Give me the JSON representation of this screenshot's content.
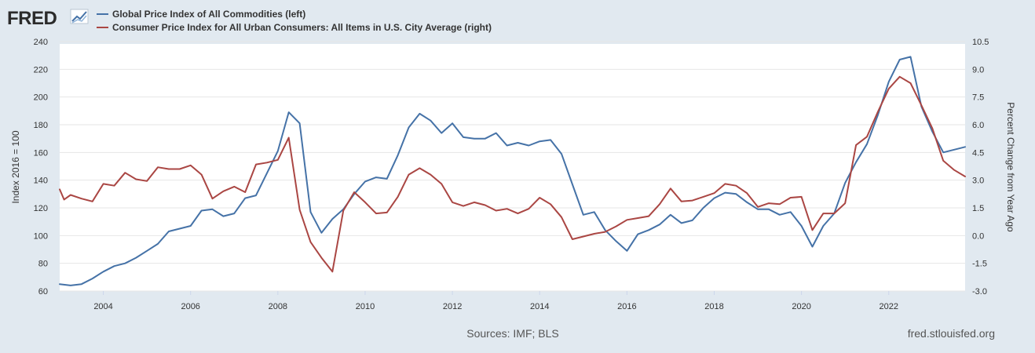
{
  "header": {
    "logo_text": "FRED",
    "logo_icon": "fred-chart-logo-icon"
  },
  "colors": {
    "background": "#e1e9f0",
    "plot_background": "#ffffff",
    "gridline": "#e6e6e6",
    "series_1": "#4572a7",
    "series_2": "#aa4643"
  },
  "footer": {
    "sources": "Sources: IMF; BLS",
    "site": "fred.stlouisfed.org"
  },
  "chart_data": {
    "type": "line",
    "grid": true,
    "legend_position": "top-left",
    "x_ticks": [
      "2004",
      "2006",
      "2008",
      "2010",
      "2012",
      "2014",
      "2016",
      "2018",
      "2020",
      "2022"
    ],
    "x_range": [
      2003.0,
      2023.75
    ],
    "left_axis": {
      "label": "Index 2016 = 100",
      "range": [
        60,
        240
      ],
      "ticks": [
        "60",
        "80",
        "100",
        "120",
        "140",
        "160",
        "180",
        "200",
        "220",
        "240"
      ]
    },
    "right_axis": {
      "label": "Percent Change from Year Ago",
      "range": [
        -3.0,
        10.5
      ],
      "ticks": [
        "-3.0",
        "-1.5",
        "0.0",
        "1.5",
        "3.0",
        "4.5",
        "6.0",
        "7.5",
        "9.0",
        "10.5"
      ]
    },
    "series": [
      {
        "name": "Global Price Index of All Commodities (left)",
        "axis": "left",
        "color": "#4572a7",
        "points": [
          [
            2003.0,
            65
          ],
          [
            2003.25,
            64
          ],
          [
            2003.5,
            65
          ],
          [
            2003.75,
            69
          ],
          [
            2004.0,
            74
          ],
          [
            2004.25,
            78
          ],
          [
            2004.5,
            80
          ],
          [
            2004.75,
            84
          ],
          [
            2005.0,
            89
          ],
          [
            2005.25,
            94
          ],
          [
            2005.5,
            103
          ],
          [
            2005.75,
            105
          ],
          [
            2006.0,
            107
          ],
          [
            2006.25,
            118
          ],
          [
            2006.5,
            119
          ],
          [
            2006.75,
            114
          ],
          [
            2007.0,
            116
          ],
          [
            2007.25,
            127
          ],
          [
            2007.5,
            129
          ],
          [
            2007.75,
            145
          ],
          [
            2008.0,
            161
          ],
          [
            2008.25,
            189
          ],
          [
            2008.5,
            181
          ],
          [
            2008.75,
            117
          ],
          [
            2009.0,
            102
          ],
          [
            2009.25,
            112
          ],
          [
            2009.5,
            119
          ],
          [
            2009.75,
            130
          ],
          [
            2010.0,
            139
          ],
          [
            2010.25,
            142
          ],
          [
            2010.5,
            141
          ],
          [
            2010.75,
            158
          ],
          [
            2011.0,
            178
          ],
          [
            2011.25,
            188
          ],
          [
            2011.5,
            183
          ],
          [
            2011.75,
            174
          ],
          [
            2012.0,
            181
          ],
          [
            2012.25,
            171
          ],
          [
            2012.5,
            170
          ],
          [
            2012.75,
            170
          ],
          [
            2013.0,
            174
          ],
          [
            2013.25,
            165
          ],
          [
            2013.5,
            167
          ],
          [
            2013.75,
            165
          ],
          [
            2014.0,
            168
          ],
          [
            2014.25,
            169
          ],
          [
            2014.5,
            159
          ],
          [
            2014.75,
            137
          ],
          [
            2015.0,
            115
          ],
          [
            2015.25,
            117
          ],
          [
            2015.5,
            104
          ],
          [
            2015.75,
            96
          ],
          [
            2016.0,
            89
          ],
          [
            2016.25,
            101
          ],
          [
            2016.5,
            104
          ],
          [
            2016.75,
            108
          ],
          [
            2017.0,
            115
          ],
          [
            2017.25,
            109
          ],
          [
            2017.5,
            111
          ],
          [
            2017.75,
            120
          ],
          [
            2018.0,
            127
          ],
          [
            2018.25,
            131
          ],
          [
            2018.5,
            130
          ],
          [
            2018.75,
            124
          ],
          [
            2019.0,
            119
          ],
          [
            2019.25,
            119
          ],
          [
            2019.5,
            115
          ],
          [
            2019.75,
            117
          ],
          [
            2020.0,
            107
          ],
          [
            2020.25,
            92
          ],
          [
            2020.5,
            107
          ],
          [
            2020.75,
            116
          ],
          [
            2021.0,
            138
          ],
          [
            2021.25,
            153
          ],
          [
            2021.5,
            166
          ],
          [
            2021.75,
            187
          ],
          [
            2022.0,
            211
          ],
          [
            2022.25,
            227
          ],
          [
            2022.5,
            229
          ],
          [
            2022.75,
            193
          ],
          [
            2023.0,
            175
          ],
          [
            2023.25,
            160
          ],
          [
            2023.5,
            162
          ],
          [
            2023.75,
            164
          ]
        ]
      },
      {
        "name": "Consumer Price Index for All Urban Consumers: All Items in U.S. City Average (right)",
        "axis": "right",
        "color": "#aa4643",
        "points": [
          [
            2003.0,
            2.5
          ],
          [
            2003.1,
            1.95
          ],
          [
            2003.25,
            2.2
          ],
          [
            2003.5,
            2.0
          ],
          [
            2003.75,
            1.85
          ],
          [
            2004.0,
            2.8
          ],
          [
            2004.25,
            2.7
          ],
          [
            2004.5,
            3.4
          ],
          [
            2004.75,
            3.05
          ],
          [
            2005.0,
            2.95
          ],
          [
            2005.25,
            3.7
          ],
          [
            2005.5,
            3.6
          ],
          [
            2005.75,
            3.6
          ],
          [
            2006.0,
            3.8
          ],
          [
            2006.25,
            3.3
          ],
          [
            2006.5,
            2.0
          ],
          [
            2006.75,
            2.4
          ],
          [
            2007.0,
            2.65
          ],
          [
            2007.25,
            2.35
          ],
          [
            2007.5,
            3.85
          ],
          [
            2007.75,
            3.95
          ],
          [
            2008.0,
            4.1
          ],
          [
            2008.25,
            5.3
          ],
          [
            2008.5,
            1.4
          ],
          [
            2008.75,
            -0.35
          ],
          [
            2009.0,
            -1.2
          ],
          [
            2009.25,
            -1.95
          ],
          [
            2009.5,
            1.35
          ],
          [
            2009.75,
            2.35
          ],
          [
            2010.0,
            1.8
          ],
          [
            2010.25,
            1.2
          ],
          [
            2010.5,
            1.25
          ],
          [
            2010.75,
            2.1
          ],
          [
            2011.0,
            3.3
          ],
          [
            2011.25,
            3.65
          ],
          [
            2011.5,
            3.3
          ],
          [
            2011.75,
            2.8
          ],
          [
            2012.0,
            1.8
          ],
          [
            2012.25,
            1.6
          ],
          [
            2012.5,
            1.8
          ],
          [
            2012.75,
            1.65
          ],
          [
            2013.0,
            1.35
          ],
          [
            2013.25,
            1.45
          ],
          [
            2013.5,
            1.2
          ],
          [
            2013.75,
            1.45
          ],
          [
            2014.0,
            2.05
          ],
          [
            2014.25,
            1.7
          ],
          [
            2014.5,
            1.0
          ],
          [
            2014.75,
            -0.2
          ],
          [
            2015.0,
            -0.05
          ],
          [
            2015.25,
            0.1
          ],
          [
            2015.5,
            0.2
          ],
          [
            2015.75,
            0.5
          ],
          [
            2016.0,
            0.85
          ],
          [
            2016.25,
            0.95
          ],
          [
            2016.5,
            1.05
          ],
          [
            2016.75,
            1.7
          ],
          [
            2017.0,
            2.55
          ],
          [
            2017.25,
            1.85
          ],
          [
            2017.5,
            1.9
          ],
          [
            2017.75,
            2.1
          ],
          [
            2018.0,
            2.3
          ],
          [
            2018.25,
            2.8
          ],
          [
            2018.5,
            2.7
          ],
          [
            2018.75,
            2.3
          ],
          [
            2019.0,
            1.55
          ],
          [
            2019.25,
            1.75
          ],
          [
            2019.5,
            1.7
          ],
          [
            2019.75,
            2.05
          ],
          [
            2020.0,
            2.1
          ],
          [
            2020.25,
            0.3
          ],
          [
            2020.5,
            1.2
          ],
          [
            2020.75,
            1.2
          ],
          [
            2021.0,
            1.75
          ],
          [
            2021.25,
            4.9
          ],
          [
            2021.5,
            5.35
          ],
          [
            2021.75,
            6.7
          ],
          [
            2022.0,
            7.95
          ],
          [
            2022.25,
            8.6
          ],
          [
            2022.5,
            8.25
          ],
          [
            2022.75,
            7.05
          ],
          [
            2023.0,
            5.8
          ],
          [
            2023.25,
            4.05
          ],
          [
            2023.5,
            3.55
          ],
          [
            2023.75,
            3.2
          ]
        ]
      }
    ]
  }
}
